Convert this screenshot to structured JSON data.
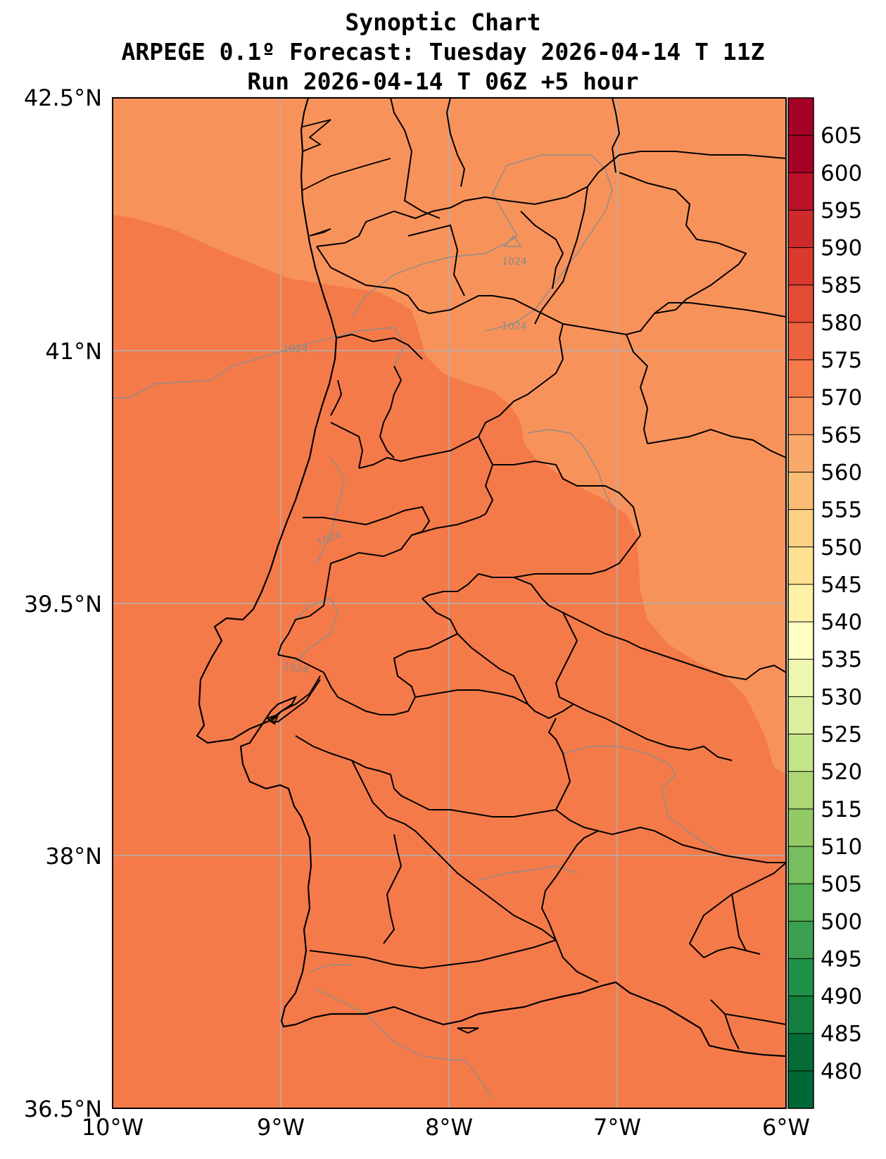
{
  "title": {
    "line1": "Synoptic Chart",
    "line2": "ARPEGE 0.1º Forecast: Tuesday 2026-04-14 T 11Z",
    "line3": "Run 2026-04-14 T 06Z +5 hour"
  },
  "axes": {
    "y_ticks": [
      "42.5°N",
      "41°N",
      "39.5°N",
      "38°N",
      "36.5°N"
    ],
    "x_ticks": [
      "10°W",
      "9°W",
      "8°W",
      "7°W",
      "6°W"
    ]
  },
  "colorbar": {
    "labels": [
      "605",
      "600",
      "595",
      "590",
      "585",
      "580",
      "575",
      "570",
      "565",
      "560",
      "555",
      "550",
      "545",
      "540",
      "535",
      "530",
      "525",
      "520",
      "515",
      "510",
      "505",
      "500",
      "495",
      "490",
      "485",
      "480"
    ],
    "colors": [
      "#a50026",
      "#bb1229",
      "#cc2a2b",
      "#da3a2e",
      "#e34c33",
      "#ec613e",
      "#f57a4a",
      "#f8925b",
      "#f9a96a",
      "#fbbd75",
      "#fdd183",
      "#fee291",
      "#fff1a8",
      "#ffffc4",
      "#eef7b1",
      "#dbef9f",
      "#c4e488",
      "#acd774",
      "#93ca66",
      "#78bd5e",
      "#58b056",
      "#3ba04f",
      "#1f9048",
      "#137e3e",
      "#076b35",
      "#006837"
    ]
  },
  "contour_labels": [
    "1024",
    "1024",
    "1024",
    "1024",
    "1024"
  ],
  "fill_colors": {
    "warm": "#f57a4a",
    "light": "#f8925b"
  }
}
